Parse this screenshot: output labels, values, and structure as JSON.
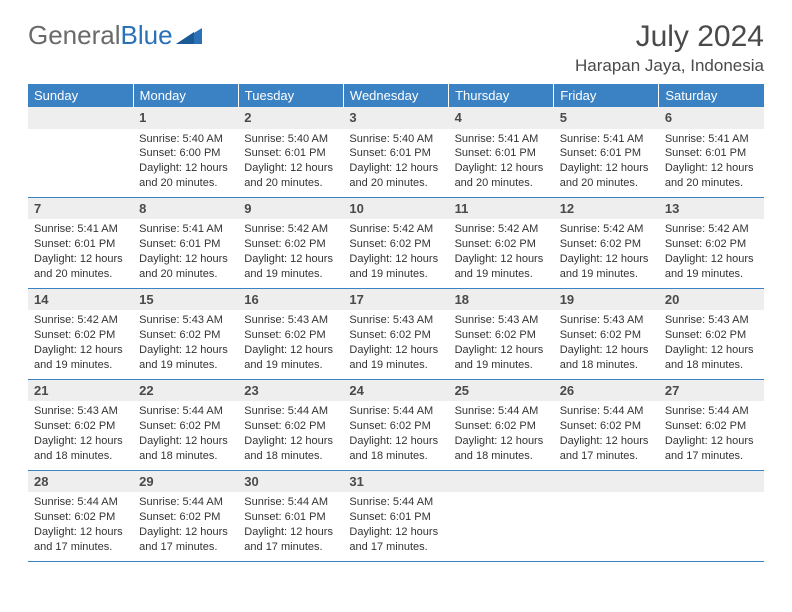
{
  "logo": {
    "text1": "General",
    "text2": "Blue"
  },
  "title": "July 2024",
  "location": "Harapan Jaya, Indonesia",
  "colors": {
    "header_bg": "#3b82c4",
    "header_fg": "#ffffff",
    "daynum_bg": "#eeeeee",
    "rule": "#3b82c4",
    "text": "#333333",
    "title_fg": "#4a4a4a",
    "logo_gray": "#6a6a6a",
    "logo_blue": "#2a71b8"
  },
  "weekdays": [
    "Sunday",
    "Monday",
    "Tuesday",
    "Wednesday",
    "Thursday",
    "Friday",
    "Saturday"
  ],
  "weeks": [
    [
      null,
      {
        "n": "1",
        "sr": "5:40 AM",
        "ss": "6:00 PM",
        "dl": "12 hours and 20 minutes."
      },
      {
        "n": "2",
        "sr": "5:40 AM",
        "ss": "6:01 PM",
        "dl": "12 hours and 20 minutes."
      },
      {
        "n": "3",
        "sr": "5:40 AM",
        "ss": "6:01 PM",
        "dl": "12 hours and 20 minutes."
      },
      {
        "n": "4",
        "sr": "5:41 AM",
        "ss": "6:01 PM",
        "dl": "12 hours and 20 minutes."
      },
      {
        "n": "5",
        "sr": "5:41 AM",
        "ss": "6:01 PM",
        "dl": "12 hours and 20 minutes."
      },
      {
        "n": "6",
        "sr": "5:41 AM",
        "ss": "6:01 PM",
        "dl": "12 hours and 20 minutes."
      }
    ],
    [
      {
        "n": "7",
        "sr": "5:41 AM",
        "ss": "6:01 PM",
        "dl": "12 hours and 20 minutes."
      },
      {
        "n": "8",
        "sr": "5:41 AM",
        "ss": "6:01 PM",
        "dl": "12 hours and 20 minutes."
      },
      {
        "n": "9",
        "sr": "5:42 AM",
        "ss": "6:02 PM",
        "dl": "12 hours and 19 minutes."
      },
      {
        "n": "10",
        "sr": "5:42 AM",
        "ss": "6:02 PM",
        "dl": "12 hours and 19 minutes."
      },
      {
        "n": "11",
        "sr": "5:42 AM",
        "ss": "6:02 PM",
        "dl": "12 hours and 19 minutes."
      },
      {
        "n": "12",
        "sr": "5:42 AM",
        "ss": "6:02 PM",
        "dl": "12 hours and 19 minutes."
      },
      {
        "n": "13",
        "sr": "5:42 AM",
        "ss": "6:02 PM",
        "dl": "12 hours and 19 minutes."
      }
    ],
    [
      {
        "n": "14",
        "sr": "5:42 AM",
        "ss": "6:02 PM",
        "dl": "12 hours and 19 minutes."
      },
      {
        "n": "15",
        "sr": "5:43 AM",
        "ss": "6:02 PM",
        "dl": "12 hours and 19 minutes."
      },
      {
        "n": "16",
        "sr": "5:43 AM",
        "ss": "6:02 PM",
        "dl": "12 hours and 19 minutes."
      },
      {
        "n": "17",
        "sr": "5:43 AM",
        "ss": "6:02 PM",
        "dl": "12 hours and 19 minutes."
      },
      {
        "n": "18",
        "sr": "5:43 AM",
        "ss": "6:02 PM",
        "dl": "12 hours and 19 minutes."
      },
      {
        "n": "19",
        "sr": "5:43 AM",
        "ss": "6:02 PM",
        "dl": "12 hours and 18 minutes."
      },
      {
        "n": "20",
        "sr": "5:43 AM",
        "ss": "6:02 PM",
        "dl": "12 hours and 18 minutes."
      }
    ],
    [
      {
        "n": "21",
        "sr": "5:43 AM",
        "ss": "6:02 PM",
        "dl": "12 hours and 18 minutes."
      },
      {
        "n": "22",
        "sr": "5:44 AM",
        "ss": "6:02 PM",
        "dl": "12 hours and 18 minutes."
      },
      {
        "n": "23",
        "sr": "5:44 AM",
        "ss": "6:02 PM",
        "dl": "12 hours and 18 minutes."
      },
      {
        "n": "24",
        "sr": "5:44 AM",
        "ss": "6:02 PM",
        "dl": "12 hours and 18 minutes."
      },
      {
        "n": "25",
        "sr": "5:44 AM",
        "ss": "6:02 PM",
        "dl": "12 hours and 18 minutes."
      },
      {
        "n": "26",
        "sr": "5:44 AM",
        "ss": "6:02 PM",
        "dl": "12 hours and 17 minutes."
      },
      {
        "n": "27",
        "sr": "5:44 AM",
        "ss": "6:02 PM",
        "dl": "12 hours and 17 minutes."
      }
    ],
    [
      {
        "n": "28",
        "sr": "5:44 AM",
        "ss": "6:02 PM",
        "dl": "12 hours and 17 minutes."
      },
      {
        "n": "29",
        "sr": "5:44 AM",
        "ss": "6:02 PM",
        "dl": "12 hours and 17 minutes."
      },
      {
        "n": "30",
        "sr": "5:44 AM",
        "ss": "6:01 PM",
        "dl": "12 hours and 17 minutes."
      },
      {
        "n": "31",
        "sr": "5:44 AM",
        "ss": "6:01 PM",
        "dl": "12 hours and 17 minutes."
      },
      null,
      null,
      null
    ]
  ],
  "labels": {
    "sunrise": "Sunrise:",
    "sunset": "Sunset:",
    "daylight": "Daylight:"
  }
}
